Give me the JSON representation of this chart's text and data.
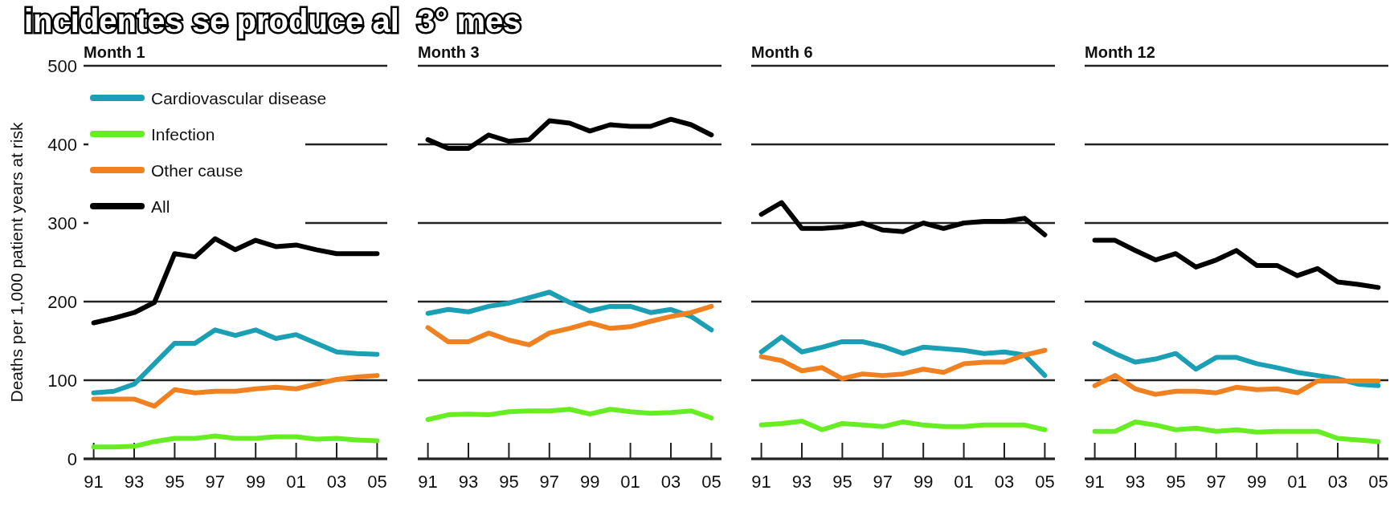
{
  "chart_data": [
    {
      "type": "line",
      "title": "Month 1",
      "ylabel": "Deaths per 1,000 patient years at risk",
      "annotations": [
        "incidentes se produce al  3° mes"
      ],
      "x": [
        1991,
        1992,
        1993,
        1994,
        1995,
        1996,
        1997,
        1998,
        1999,
        2000,
        2001,
        2002,
        2003,
        2004,
        2005
      ],
      "xlim": [
        1990.5,
        2005.5
      ],
      "xticks": [
        {
          "value": 1991,
          "label": "91"
        },
        {
          "value": 1993,
          "label": "93"
        },
        {
          "value": 1995,
          "label": "95"
        },
        {
          "value": 1997,
          "label": "97"
        },
        {
          "value": 1999,
          "label": "99"
        },
        {
          "value": 2001,
          "label": "01"
        },
        {
          "value": 2003,
          "label": "03"
        },
        {
          "value": 2005,
          "label": "05"
        }
      ],
      "ylim": [
        0,
        500
      ],
      "yticks": [
        0,
        100,
        200,
        300,
        400,
        500
      ],
      "grid": "y",
      "legend": "top left",
      "series": [
        {
          "name": "Cardiovascular disease",
          "color": "#1a9fb5",
          "values": [
            84,
            86,
            95,
            121,
            147,
            147,
            164,
            157,
            164,
            153,
            158,
            147,
            136,
            134,
            133
          ]
        },
        {
          "name": "Infection",
          "color": "#66ee22",
          "values": [
            15,
            15,
            16,
            22,
            26,
            26,
            29,
            26,
            26,
            28,
            28,
            25,
            26,
            24,
            23
          ]
        },
        {
          "name": "Other cause",
          "color": "#f08020",
          "values": [
            76,
            76,
            76,
            67,
            88,
            84,
            86,
            86,
            89,
            91,
            89,
            95,
            101,
            104,
            106
          ]
        },
        {
          "name": "All",
          "color": "#000000",
          "values": [
            173,
            179,
            186,
            199,
            261,
            257,
            280,
            266,
            278,
            270,
            272,
            266,
            261,
            261,
            261
          ]
        }
      ]
    },
    {
      "type": "line",
      "title": "Month 3",
      "x": [
        1991,
        1992,
        1993,
        1994,
        1995,
        1996,
        1997,
        1998,
        1999,
        2000,
        2001,
        2002,
        2003,
        2004,
        2005
      ],
      "xlim": [
        1990.5,
        2005.5
      ],
      "xticks": [
        {
          "value": 1991,
          "label": "91"
        },
        {
          "value": 1993,
          "label": "93"
        },
        {
          "value": 1995,
          "label": "95"
        },
        {
          "value": 1997,
          "label": "97"
        },
        {
          "value": 1999,
          "label": "99"
        },
        {
          "value": 2001,
          "label": "01"
        },
        {
          "value": 2003,
          "label": "03"
        },
        {
          "value": 2005,
          "label": "05"
        }
      ],
      "ylim": [
        0,
        500
      ],
      "yticks": [
        0,
        100,
        200,
        300,
        400,
        500
      ],
      "grid": "y",
      "tick_labels": "x",
      "series": [
        {
          "color": "#1a9fb5",
          "values": [
            185,
            190,
            187,
            194,
            198,
            205,
            212,
            199,
            188,
            194,
            194,
            186,
            190,
            181,
            164
          ]
        },
        {
          "color": "#66ee22",
          "values": [
            50,
            56,
            57,
            56,
            60,
            61,
            61,
            63,
            57,
            63,
            60,
            58,
            59,
            61,
            52
          ]
        },
        {
          "color": "#f08020",
          "values": [
            167,
            149,
            149,
            160,
            151,
            145,
            160,
            166,
            173,
            166,
            168,
            175,
            181,
            186,
            194
          ]
        },
        {
          "color": "#000000",
          "values": [
            406,
            395,
            395,
            412,
            404,
            406,
            430,
            427,
            417,
            425,
            423,
            423,
            432,
            425,
            412
          ]
        }
      ]
    },
    {
      "type": "line",
      "title": "Month 6",
      "x": [
        1991,
        1992,
        1993,
        1994,
        1995,
        1996,
        1997,
        1998,
        1999,
        2000,
        2001,
        2002,
        2003,
        2004,
        2005
      ],
      "xlim": [
        1990.5,
        2005.5
      ],
      "xticks": [
        {
          "value": 1991,
          "label": "91"
        },
        {
          "value": 1993,
          "label": "93"
        },
        {
          "value": 1995,
          "label": "95"
        },
        {
          "value": 1997,
          "label": "97"
        },
        {
          "value": 1999,
          "label": "99"
        },
        {
          "value": 2001,
          "label": "01"
        },
        {
          "value": 2003,
          "label": "03"
        },
        {
          "value": 2005,
          "label": "05"
        }
      ],
      "ylim": [
        0,
        500
      ],
      "yticks": [
        0,
        100,
        200,
        300,
        400,
        500
      ],
      "grid": "y",
      "tick_labels": "x",
      "series": [
        {
          "color": "#1a9fb5",
          "values": [
            136,
            155,
            136,
            142,
            149,
            149,
            143,
            134,
            142,
            140,
            138,
            134,
            136,
            132,
            106
          ]
        },
        {
          "color": "#66ee22",
          "values": [
            43,
            45,
            48,
            37,
            45,
            43,
            41,
            47,
            43,
            41,
            41,
            43,
            43,
            43,
            37
          ]
        },
        {
          "color": "#f08020",
          "values": [
            130,
            125,
            112,
            116,
            102,
            108,
            106,
            108,
            114,
            110,
            121,
            123,
            123,
            132,
            138
          ]
        },
        {
          "color": "#000000",
          "values": [
            311,
            326,
            293,
            293,
            295,
            300,
            291,
            289,
            300,
            293,
            300,
            302,
            302,
            306,
            285
          ]
        }
      ]
    },
    {
      "type": "line",
      "title": "Month 12",
      "x": [
        1991,
        1992,
        1993,
        1994,
        1995,
        1996,
        1997,
        1998,
        1999,
        2000,
        2001,
        2002,
        2003,
        2004,
        2005
      ],
      "xlim": [
        1990.5,
        2005.5
      ],
      "xticks": [
        {
          "value": 1991,
          "label": "91"
        },
        {
          "value": 1993,
          "label": "93"
        },
        {
          "value": 1995,
          "label": "95"
        },
        {
          "value": 1997,
          "label": "97"
        },
        {
          "value": 1999,
          "label": "99"
        },
        {
          "value": 2001,
          "label": "01"
        },
        {
          "value": 2003,
          "label": "03"
        },
        {
          "value": 2005,
          "label": "05"
        }
      ],
      "ylim": [
        0,
        500
      ],
      "yticks": [
        0,
        100,
        200,
        300,
        400,
        500
      ],
      "grid": "y",
      "tick_labels": "x",
      "series": [
        {
          "color": "#1a9fb5",
          "values": [
            147,
            134,
            123,
            127,
            134,
            114,
            129,
            129,
            121,
            116,
            110,
            106,
            102,
            95,
            93
          ]
        },
        {
          "color": "#66ee22",
          "values": [
            35,
            35,
            47,
            43,
            37,
            39,
            35,
            37,
            34,
            35,
            35,
            35,
            26,
            24,
            22
          ]
        },
        {
          "color": "#f08020",
          "values": [
            93,
            106,
            89,
            82,
            86,
            86,
            84,
            91,
            88,
            89,
            84,
            99,
            99,
            99,
            99
          ]
        },
        {
          "color": "#000000",
          "values": [
            278,
            278,
            265,
            253,
            261,
            244,
            253,
            265,
            246,
            246,
            233,
            242,
            225,
            222,
            218
          ]
        }
      ]
    }
  ]
}
